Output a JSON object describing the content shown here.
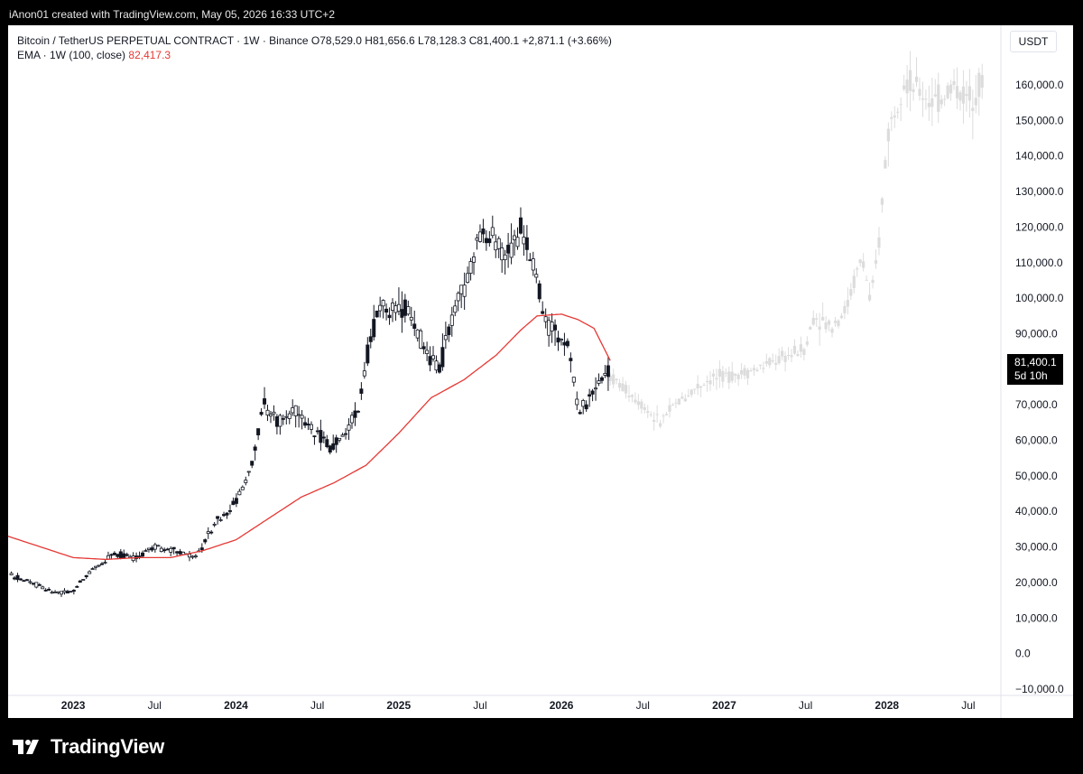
{
  "header": {
    "created_text": "iAnon01 created with TradingView.com, May 05, 2026 16:33 UTC+2"
  },
  "legend": {
    "symbol_line": "Bitcoin / TetherUS PERPETUAL CONTRACT · 1W · Binance",
    "open": "O78,529.0",
    "high": "H81,656.6",
    "low": "L78,128.3",
    "close": "C81,400.1",
    "change": "+2,871.1 (+3.66%)",
    "ema_label": "EMA · 1W (100, close)",
    "ema_value": "82,417.3"
  },
  "price_axis": {
    "currency": "USDT",
    "ticks": [
      "160,000.0",
      "150,000.0",
      "140,000.0",
      "130,000.0",
      "120,000.0",
      "110,000.0",
      "100,000.0",
      "90,000.0",
      "70,000.0",
      "60,000.0",
      "50,000.0",
      "40,000.0",
      "30,000.0",
      "20,000.0",
      "10,000.0",
      "0.0",
      "−10,000.0"
    ],
    "last_price": "81,400.1",
    "countdown": "5d 10h"
  },
  "time_axis": {
    "labels": [
      {
        "text": "2023",
        "bold": true,
        "t": 2023.0
      },
      {
        "text": "Jul",
        "bold": false,
        "t": 2023.5
      },
      {
        "text": "2024",
        "bold": true,
        "t": 2024.0
      },
      {
        "text": "Jul",
        "bold": false,
        "t": 2024.5
      },
      {
        "text": "2025",
        "bold": true,
        "t": 2025.0
      },
      {
        "text": "Jul",
        "bold": false,
        "t": 2025.5
      },
      {
        "text": "2026",
        "bold": true,
        "t": 2026.0
      },
      {
        "text": "Jul",
        "bold": false,
        "t": 2026.5
      },
      {
        "text": "2027",
        "bold": true,
        "t": 2027.0
      },
      {
        "text": "Jul",
        "bold": false,
        "t": 2027.5
      },
      {
        "text": "2028",
        "bold": true,
        "t": 2028.0
      },
      {
        "text": "Jul",
        "bold": false,
        "t": 2028.5
      }
    ]
  },
  "footer": {
    "brand": "TradingView"
  },
  "colors": {
    "candle": "#131722",
    "projection": "#dcdcdc",
    "ema": "#e53935",
    "background": "#ffffff"
  },
  "chart_data": {
    "type": "line",
    "title": "Bitcoin / TetherUS PERPETUAL CONTRACT · 1W · Binance",
    "ylim": [
      -10000,
      170000
    ],
    "xlim": [
      2022.6,
      2028.7
    ],
    "grid": false,
    "series": [
      {
        "name": "Bitcoin / TetherUS PERPETUAL CONTRACT",
        "x": [
          2022.62,
          2022.75,
          2022.88,
          2023.0,
          2023.12,
          2023.25,
          2023.38,
          2023.5,
          2023.62,
          2023.75,
          2023.88,
          2024.0,
          2024.08,
          2024.17,
          2024.25,
          2024.33,
          2024.42,
          2024.5,
          2024.58,
          2024.67,
          2024.75,
          2024.83,
          2024.9,
          2025.0,
          2025.08,
          2025.17,
          2025.25,
          2025.33,
          2025.42,
          2025.5,
          2025.58,
          2025.67,
          2025.75,
          2025.83,
          2025.92,
          2026.0,
          2026.05,
          2026.1,
          2026.2,
          2026.3
        ],
        "values": [
          22000,
          20000,
          17000,
          17500,
          24000,
          28000,
          27000,
          30000,
          29000,
          27000,
          37000,
          43000,
          50000,
          70000,
          65000,
          68000,
          66000,
          62000,
          58000,
          62000,
          68000,
          90000,
          98000,
          97000,
          96000,
          84000,
          80000,
          95000,
          105000,
          118000,
          116000,
          112000,
          120000,
          108000,
          92000,
          88000,
          86000,
          68000,
          72000,
          81400
        ]
      },
      {
        "name": "EMA · 1W (100, close)",
        "x": [
          2022.6,
          2022.8,
          2023.0,
          2023.2,
          2023.4,
          2023.6,
          2023.8,
          2024.0,
          2024.2,
          2024.4,
          2024.6,
          2024.8,
          2025.0,
          2025.2,
          2025.4,
          2025.6,
          2025.75,
          2025.85,
          2026.0,
          2026.1,
          2026.2,
          2026.3
        ],
        "values": [
          33000,
          30000,
          27000,
          26500,
          27000,
          27000,
          29000,
          32000,
          38000,
          44000,
          48000,
          53000,
          62000,
          72000,
          77000,
          84000,
          91000,
          95000,
          95500,
          94000,
          91500,
          82417
        ]
      },
      {
        "name": "Projection",
        "x": [
          2026.3,
          2026.4,
          2026.5,
          2026.6,
          2026.7,
          2026.8,
          2026.9,
          2027.0,
          2027.1,
          2027.2,
          2027.3,
          2027.4,
          2027.5,
          2027.55,
          2027.65,
          2027.75,
          2027.8,
          2027.85,
          2027.9,
          2027.95,
          2028.0,
          2028.1,
          2028.2,
          2028.3,
          2028.4,
          2028.5,
          2028.6
        ],
        "values": [
          78000,
          74000,
          70000,
          65000,
          70000,
          74000,
          77000,
          78000,
          79000,
          80000,
          82000,
          84000,
          86000,
          95000,
          92000,
          97000,
          105000,
          112000,
          98000,
          115000,
          145000,
          162000,
          158000,
          155000,
          160000,
          156000,
          162000
        ]
      }
    ]
  }
}
